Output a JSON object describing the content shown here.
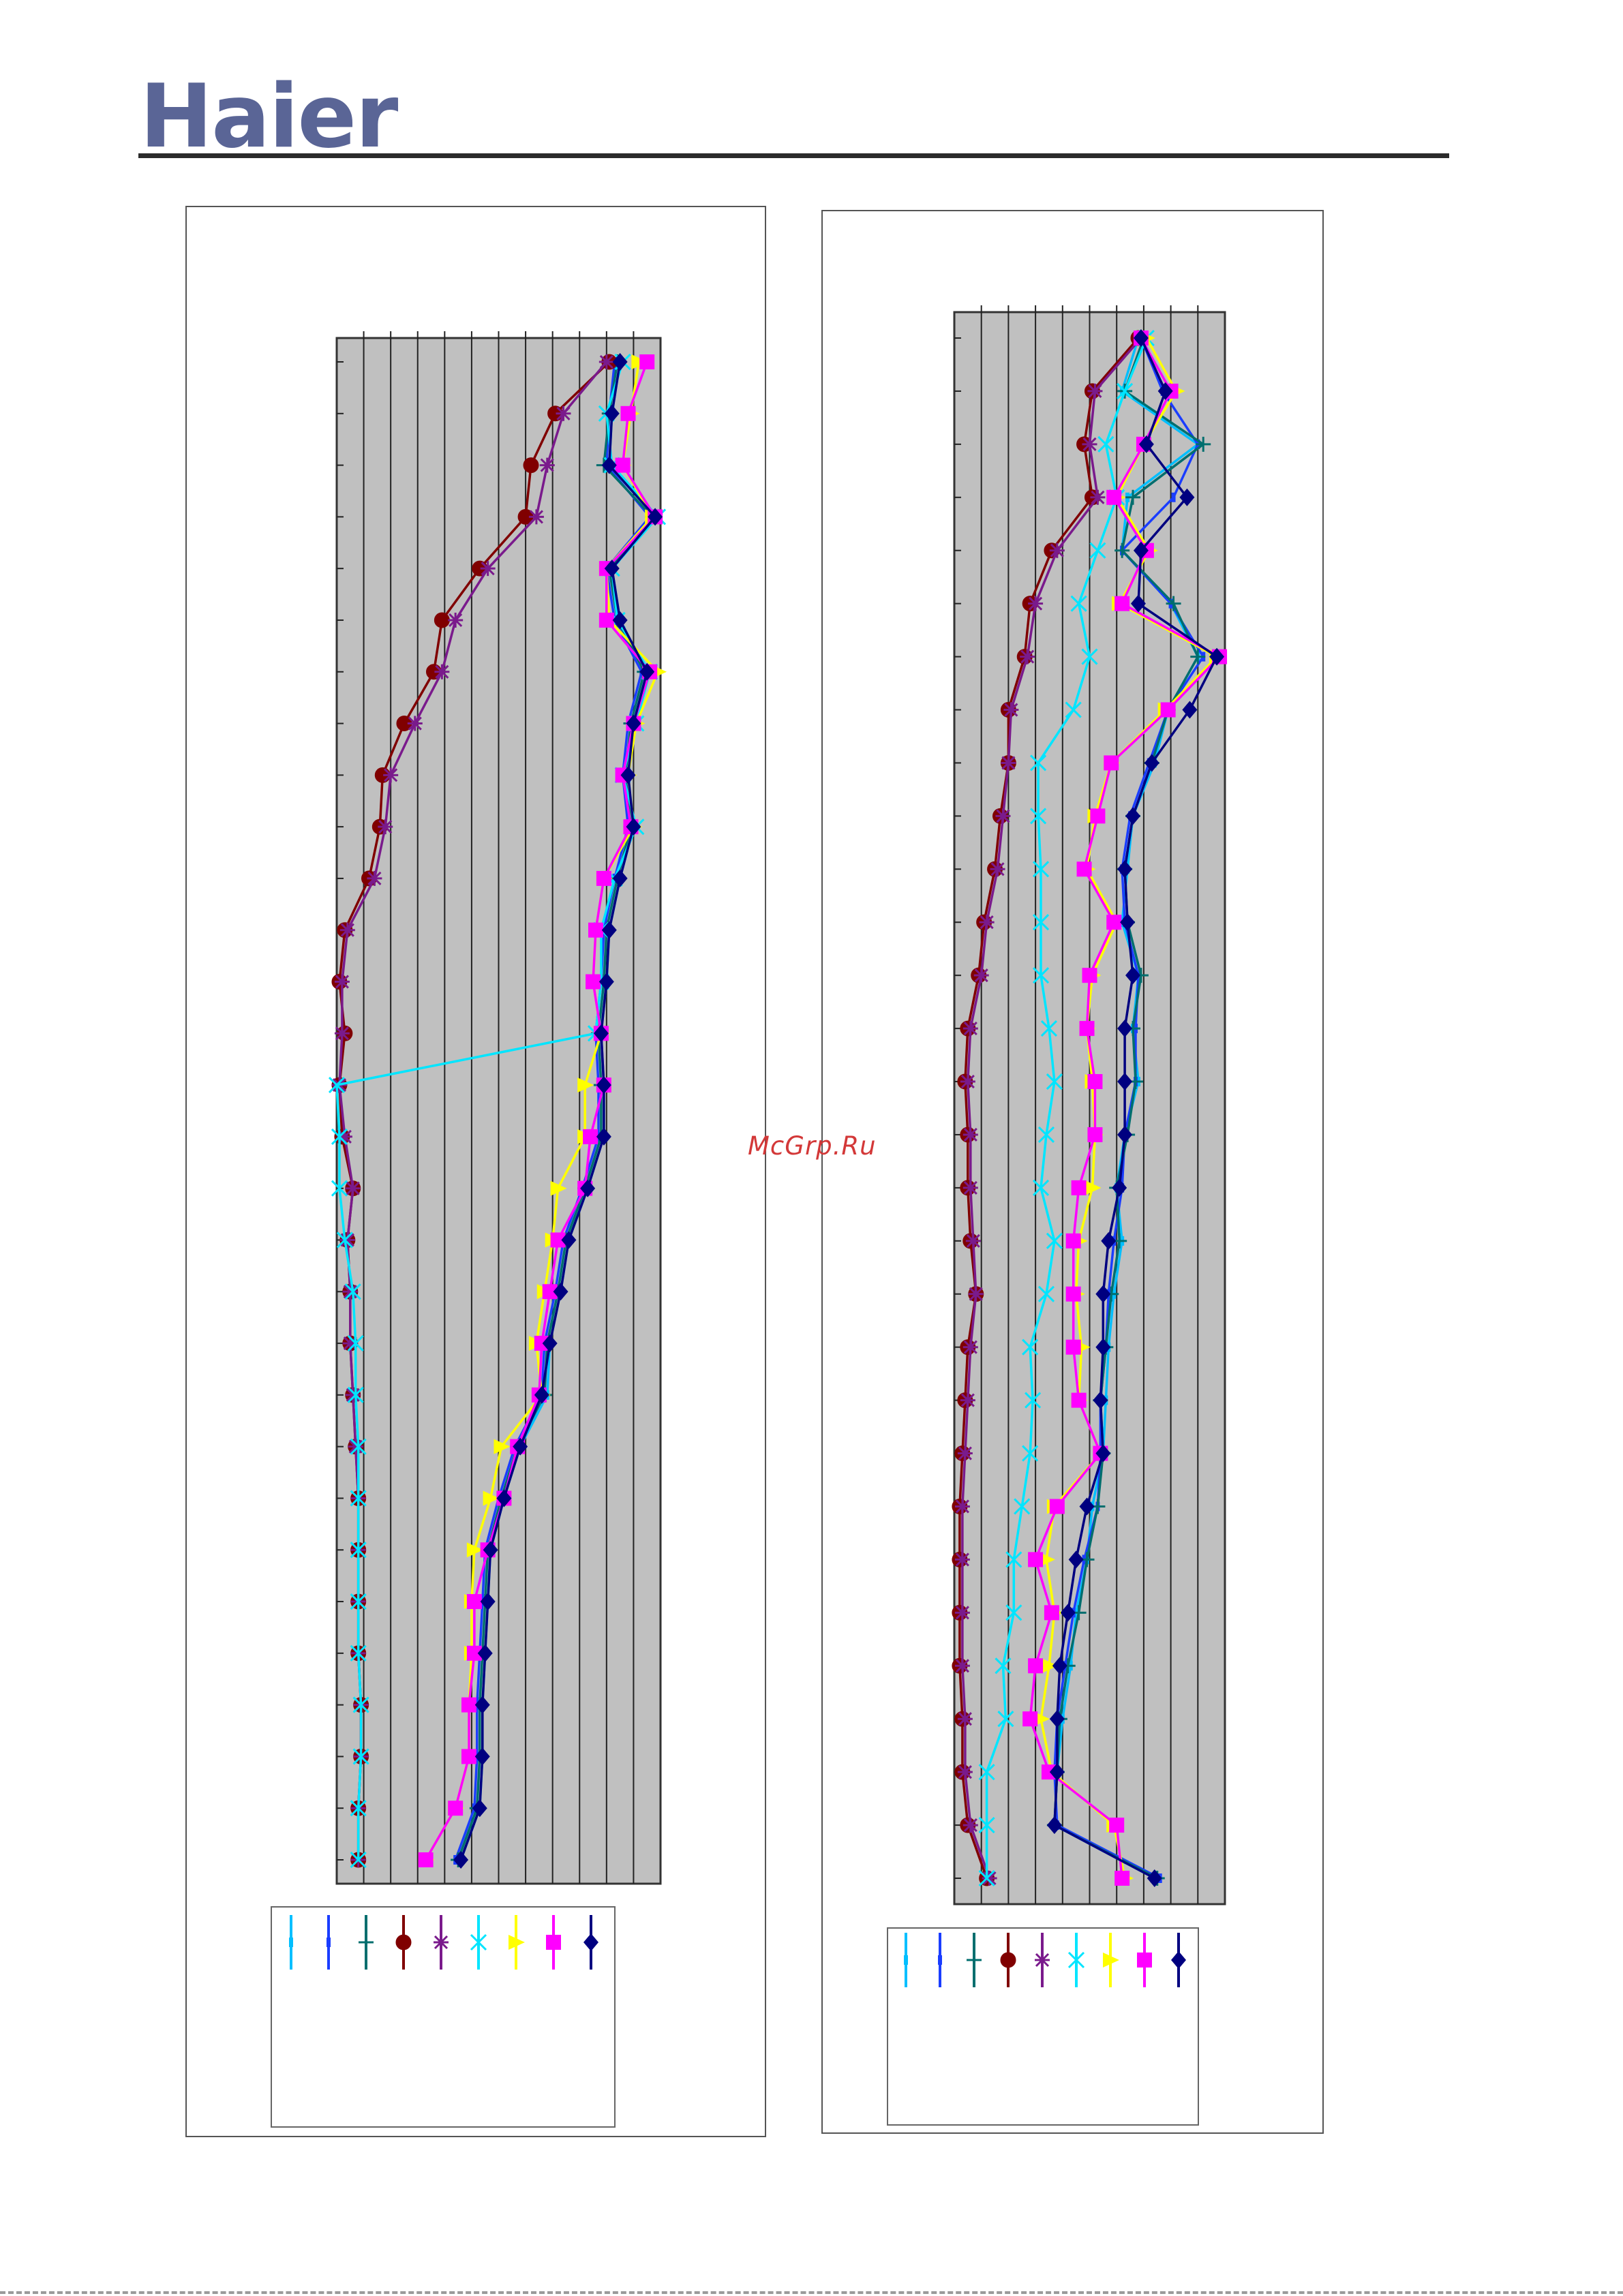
{
  "header": {
    "logo_text": "Haier",
    "logo_color": "#5a6596"
  },
  "watermark": "McGrp.Ru",
  "series_colors": [
    "#00bfff",
    "#1a3dff",
    "#006e6e",
    "#800000",
    "#7a1a8c",
    "#00e5ff",
    "#ffff00",
    "#ff00ff",
    "#000080"
  ],
  "series_markers": [
    "line-rect",
    "line-rect",
    "plus",
    "circle",
    "star",
    "x",
    "triangle",
    "square",
    "diamond"
  ],
  "chart_data": [
    {
      "type": "line",
      "orientation": "horizontal-values",
      "title": "",
      "xlabel": "",
      "ylabel": "",
      "grid": true,
      "legend": "below",
      "xlim": [
        0,
        12
      ],
      "ylim": [
        1,
        30
      ],
      "y": [
        1,
        2,
        3,
        4,
        5,
        6,
        7,
        8,
        9,
        10,
        11,
        12,
        13,
        14,
        15,
        16,
        17,
        18,
        19,
        20,
        21,
        22,
        23,
        24,
        25,
        26,
        27,
        28,
        29,
        30
      ],
      "series": [
        {
          "values": [
            10.5,
            10.2,
            10.1,
            11.8,
            10.2,
            10.5,
            11.5,
            11.0,
            10.8,
            11.0,
            10.5,
            10.1,
            10.0,
            9.8,
            9.9,
            9.9,
            9.3,
            8.6,
            8.3,
            7.9,
            7.8,
            6.8,
            6.2,
            5.7,
            5.6,
            5.5,
            5.4,
            5.4,
            5.3,
            4.6
          ]
        },
        {
          "values": [
            10.3,
            10.1,
            10.0,
            11.6,
            10.0,
            10.3,
            11.3,
            10.8,
            10.6,
            10.8,
            10.3,
            9.9,
            9.8,
            9.6,
            9.7,
            9.7,
            9.1,
            8.4,
            8.1,
            7.7,
            7.6,
            6.6,
            6.0,
            5.5,
            5.4,
            5.3,
            5.2,
            5.2,
            5.1,
            4.4
          ]
        },
        {
          "values": [
            10.4,
            10.1,
            9.9,
            11.7,
            10.1,
            10.4,
            11.4,
            10.9,
            10.7,
            10.9,
            10.4,
            10.0,
            9.9,
            9.7,
            9.8,
            9.8,
            9.2,
            8.5,
            8.2,
            7.8,
            7.7,
            6.7,
            6.1,
            5.6,
            5.5,
            5.4,
            5.3,
            5.3,
            5.2,
            4.5
          ]
        },
        {
          "values": [
            10.1,
            8.1,
            7.2,
            7.0,
            5.3,
            3.9,
            3.6,
            2.5,
            1.7,
            1.6,
            1.2,
            0.3,
            0.1,
            0.3,
            0.1,
            0.2,
            0.6,
            0.4,
            0.5,
            0.5,
            0.6,
            0.7,
            0.8,
            0.8,
            0.8,
            0.8,
            0.9,
            0.9,
            0.8,
            0.8
          ]
        },
        {
          "values": [
            10.0,
            8.4,
            7.8,
            7.4,
            5.6,
            4.4,
            3.9,
            2.9,
            2.0,
            1.8,
            1.4,
            0.4,
            0.2,
            0.2,
            0.1,
            0.3,
            0.6,
            0.4,
            0.5,
            0.5,
            0.6,
            0.7,
            0.8,
            0.8,
            0.8,
            0.8,
            0.9,
            0.9,
            0.8,
            0.8
          ]
        },
        {
          "values": [
            10.6,
            10.0,
            10.2,
            11.9,
            10.2,
            10.4,
            11.6,
            11.1,
            10.6,
            11.1,
            10.3,
            9.8,
            9.8,
            9.6,
            0.0,
            0.1,
            0.1,
            0.3,
            0.6,
            0.7,
            0.7,
            0.8,
            0.8,
            0.8,
            0.8,
            0.8,
            0.9,
            0.9,
            0.8,
            0.8
          ]
        },
        {
          "values": [
            11.2,
            10.9,
            10.6,
            11.7,
            10.0,
            10.1,
            11.9,
            11.1,
            10.8,
            11.0,
            9.9,
            9.6,
            9.5,
            9.8,
            9.2,
            9.2,
            8.2,
            8.0,
            7.7,
            7.4,
            7.6,
            6.1,
            5.7,
            5.1,
            5.0,
            5.0,
            4.9,
            4.9,
            4.4,
            3.3
          ]
        },
        {
          "values": [
            11.5,
            10.8,
            10.6,
            11.8,
            10.0,
            10.0,
            11.6,
            11.0,
            10.6,
            10.9,
            9.9,
            9.6,
            9.5,
            9.8,
            9.9,
            9.4,
            9.2,
            8.2,
            7.9,
            7.6,
            7.5,
            6.7,
            6.2,
            5.6,
            5.1,
            5.1,
            4.9,
            4.9,
            4.4,
            3.3
          ]
        },
        {
          "values": [
            10.5,
            10.2,
            10.1,
            11.8,
            10.2,
            10.5,
            11.5,
            11.0,
            10.8,
            11.0,
            10.5,
            10.1,
            10.0,
            9.8,
            9.9,
            9.9,
            9.3,
            8.6,
            8.3,
            7.9,
            7.6,
            6.8,
            6.2,
            5.7,
            5.6,
            5.5,
            5.4,
            5.4,
            5.3,
            4.6
          ]
        }
      ]
    },
    {
      "type": "line",
      "orientation": "horizontal-values",
      "title": "",
      "xlabel": "",
      "ylabel": "",
      "grid": true,
      "legend": "below",
      "xlim": [
        0,
        10
      ],
      "ylim": [
        1,
        30
      ],
      "y": [
        1,
        2,
        3,
        4,
        5,
        6,
        7,
        8,
        9,
        10,
        11,
        12,
        13,
        14,
        15,
        16,
        17,
        18,
        19,
        20,
        21,
        22,
        23,
        24,
        25,
        26,
        27,
        28,
        29,
        30
      ],
      "series": [
        {
          "values": [
            6.8,
            6.2,
            9.0,
            6.4,
            6.2,
            8.0,
            9.0,
            7.9,
            7.4,
            6.6,
            6.4,
            6.2,
            6.8,
            6.6,
            6.8,
            6.3,
            6.0,
            6.2,
            5.9,
            5.7,
            5.6,
            5.5,
            5.1,
            4.9,
            4.5,
            4.3,
            4.0,
            3.8,
            3.7,
            7.4
          ]
        },
        {
          "values": [
            6.9,
            7.7,
            9.0,
            8.1,
            6.2,
            8.0,
            9.2,
            7.9,
            7.2,
            6.5,
            6.2,
            6.3,
            6.8,
            6.7,
            6.7,
            6.3,
            6.2,
            5.9,
            5.7,
            5.6,
            5.4,
            5.4,
            5.3,
            4.8,
            4.4,
            4.1,
            3.8,
            3.7,
            3.8,
            7.6
          ]
        },
        {
          "values": [
            7.0,
            6.3,
            9.2,
            6.6,
            6.2,
            8.1,
            9.0,
            7.9,
            7.3,
            6.6,
            6.3,
            6.4,
            6.9,
            6.6,
            6.7,
            6.4,
            6.0,
            6.1,
            5.8,
            5.6,
            5.4,
            5.5,
            5.3,
            4.9,
            4.6,
            4.2,
            3.9,
            3.8,
            3.7,
            7.5
          ]
        },
        {
          "values": [
            6.8,
            5.1,
            4.8,
            5.1,
            3.6,
            2.8,
            2.6,
            2.0,
            2.0,
            1.7,
            1.5,
            1.1,
            0.9,
            0.5,
            0.4,
            0.5,
            0.5,
            0.6,
            0.8,
            0.5,
            0.4,
            0.3,
            0.2,
            0.2,
            0.2,
            0.2,
            0.3,
            0.3,
            0.5,
            1.2
          ]
        },
        {
          "values": [
            6.9,
            5.2,
            5.0,
            5.3,
            3.8,
            3.0,
            2.7,
            2.1,
            2.0,
            1.8,
            1.6,
            1.2,
            1.0,
            0.6,
            0.5,
            0.6,
            0.6,
            0.7,
            0.8,
            0.6,
            0.5,
            0.4,
            0.3,
            0.3,
            0.3,
            0.3,
            0.4,
            0.4,
            0.6,
            1.3
          ]
        },
        {
          "values": [
            7.1,
            6.3,
            5.6,
            6.0,
            5.3,
            4.6,
            5.0,
            4.4,
            3.1,
            3.1,
            3.2,
            3.2,
            3.2,
            3.5,
            3.7,
            3.4,
            3.2,
            3.7,
            3.4,
            2.8,
            2.9,
            2.8,
            2.5,
            2.2,
            2.2,
            1.8,
            1.9,
            1.2,
            1.2,
            1.2
          ]
        },
        {
          "values": [
            7.1,
            8.2,
            7.0,
            6.0,
            7.2,
            6.1,
            9.7,
            7.8,
            5.8,
            5.2,
            4.9,
            6.0,
            5.1,
            4.9,
            5.1,
            5.2,
            5.1,
            4.6,
            4.5,
            4.7,
            4.6,
            5.4,
            3.7,
            3.4,
            3.7,
            3.5,
            3.2,
            3.6,
            5.9,
            6.3
          ]
        },
        {
          "values": [
            6.9,
            8.0,
            7.0,
            5.9,
            7.1,
            6.2,
            9.8,
            7.9,
            5.8,
            5.3,
            4.8,
            5.9,
            5.0,
            4.9,
            5.2,
            5.2,
            4.6,
            4.4,
            4.4,
            4.4,
            4.6,
            5.4,
            3.8,
            3.0,
            3.6,
            3.0,
            2.8,
            3.5,
            6.0,
            6.2
          ]
        },
        {
          "values": [
            6.9,
            7.8,
            7.1,
            8.6,
            6.9,
            6.8,
            9.7,
            8.7,
            7.3,
            6.6,
            6.3,
            6.4,
            6.6,
            6.3,
            6.3,
            6.3,
            6.1,
            5.7,
            5.5,
            5.5,
            5.4,
            5.5,
            4.9,
            4.5,
            4.2,
            3.9,
            3.8,
            3.8,
            3.7,
            7.4
          ]
        }
      ]
    }
  ]
}
